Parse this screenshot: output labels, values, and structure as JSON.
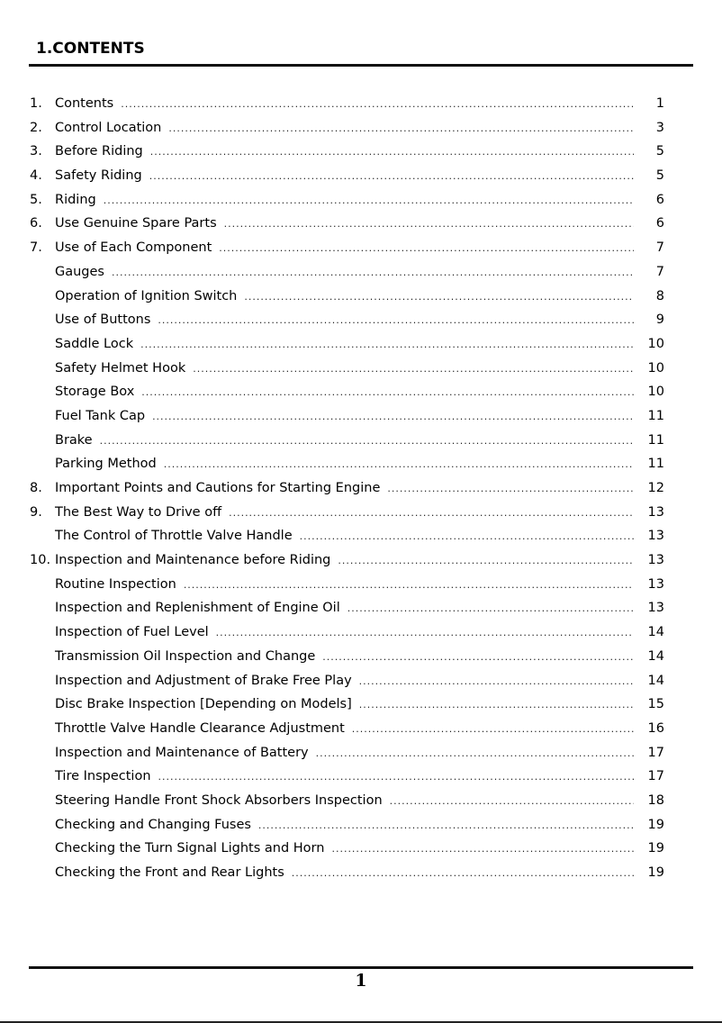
{
  "header": {
    "title": "1.CONTENTS"
  },
  "toc": [
    {
      "num": "1.",
      "label": "Contents",
      "page": "1"
    },
    {
      "num": "2.",
      "label": "Control Location",
      "page": "3"
    },
    {
      "num": "3.",
      "label": "Before Riding",
      "page": "5"
    },
    {
      "num": "4.",
      "label": "Safety Riding",
      "page": "5"
    },
    {
      "num": "5.",
      "label": "Riding",
      "page": "6"
    },
    {
      "num": "6.",
      "label": "Use Genuine Spare Parts",
      "page": "6"
    },
    {
      "num": "7.",
      "label": "Use of Each Component",
      "page": "7"
    },
    {
      "num": "",
      "label": "Gauges",
      "page": "7"
    },
    {
      "num": "",
      "label": "Operation of Ignition Switch",
      "page": "8"
    },
    {
      "num": "",
      "label": "Use of Buttons",
      "page": "9"
    },
    {
      "num": "",
      "label": "Saddle Lock",
      "page": "10"
    },
    {
      "num": "",
      "label": "Safety Helmet Hook",
      "page": "10"
    },
    {
      "num": "",
      "label": "Storage Box",
      "page": "10"
    },
    {
      "num": "",
      "label": "Fuel Tank Cap",
      "page": "11"
    },
    {
      "num": "",
      "label": "Brake",
      "page": "11"
    },
    {
      "num": "",
      "label": "Parking Method",
      "page": "11"
    },
    {
      "num": "8.",
      "label": "Important Points and Cautions for Starting Engine",
      "page": "12"
    },
    {
      "num": "9.",
      "label": "The Best Way to Drive off",
      "page": "13"
    },
    {
      "num": "",
      "label": "The Control of Throttle Valve Handle",
      "page": "13"
    },
    {
      "num": "10.",
      "label": "Inspection and Maintenance before Riding",
      "page": "13"
    },
    {
      "num": "",
      "label": "Routine Inspection",
      "page": "13"
    },
    {
      "num": "",
      "label": "Inspection and Replenishment of Engine Oil",
      "page": "13"
    },
    {
      "num": "",
      "label": "Inspection of Fuel Level",
      "page": "14"
    },
    {
      "num": "",
      "label": "Transmission Oil Inspection and Change",
      "page": "14"
    },
    {
      "num": "",
      "label": "Inspection and Adjustment of Brake Free Play",
      "page": "14"
    },
    {
      "num": "",
      "label": "Disc Brake Inspection [Depending on Models]",
      "page": "15"
    },
    {
      "num": "",
      "label": "Throttle Valve Handle Clearance Adjustment",
      "page": "16"
    },
    {
      "num": "",
      "label": "Inspection and Maintenance of Battery",
      "page": "17"
    },
    {
      "num": "",
      "label": "Tire Inspection",
      "page": "17"
    },
    {
      "num": "",
      "label": "Steering Handle Front Shock Absorbers Inspection",
      "page": "18"
    },
    {
      "num": "",
      "label": "Checking and Changing Fuses",
      "page": "19"
    },
    {
      "num": "",
      "label": "Checking the Turn Signal Lights and Horn",
      "page": "19"
    },
    {
      "num": "",
      "label": "Checking the Front and Rear Lights",
      "page": "19"
    }
  ],
  "footer": {
    "page_number": "1"
  }
}
